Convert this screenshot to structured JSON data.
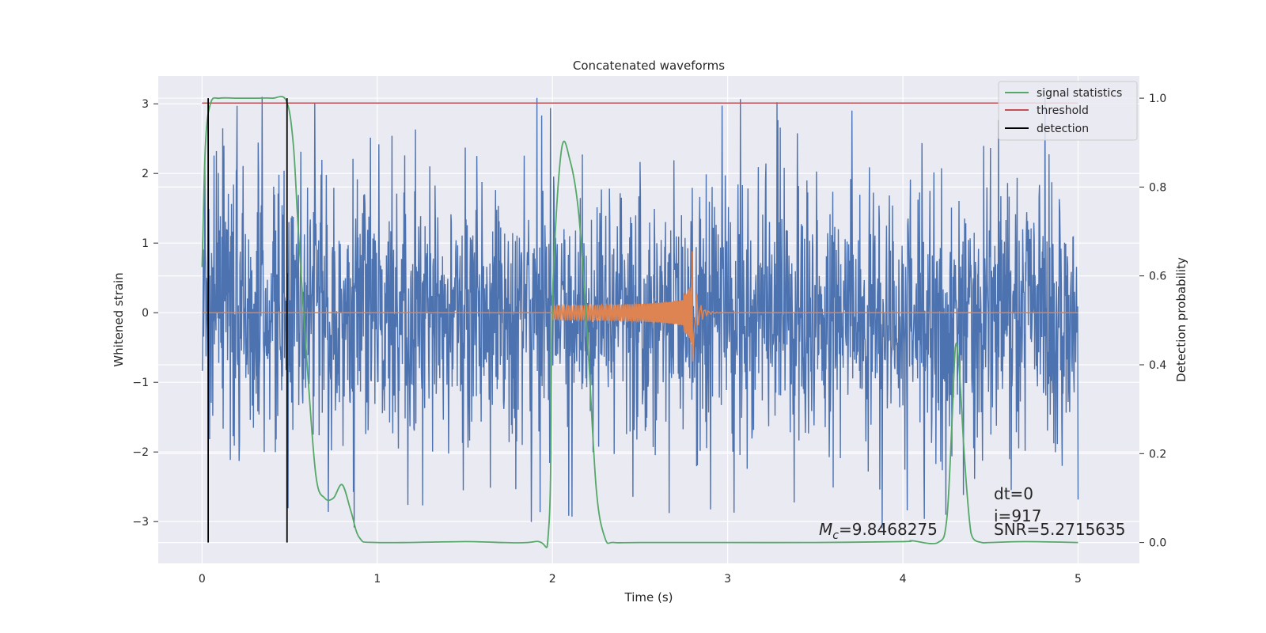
{
  "chart_data": {
    "type": "line",
    "title": "Concatenated waveforms",
    "xlabel": "Time (s)",
    "ylabel": "Whitened strain",
    "y2label": "Detection probability",
    "xlim": [
      -0.25,
      5.35
    ],
    "ylim": [
      -3.6,
      3.4
    ],
    "y2lim": [
      -0.047,
      1.05
    ],
    "xticks": [
      0,
      1,
      2,
      3,
      4,
      5
    ],
    "yticks": [
      -3,
      -2,
      -1,
      0,
      1,
      2,
      3
    ],
    "y2ticks": [
      0.0,
      0.2,
      0.4,
      0.6,
      0.8,
      1.0
    ],
    "ytick_labels": [
      "−3",
      "−2",
      "−1",
      "0",
      "1",
      "2",
      "3"
    ],
    "y2tick_labels": [
      "0.0",
      "0.2",
      "0.4",
      "0.6",
      "0.8",
      "1.0"
    ],
    "grid": true,
    "legend_position": "top-right",
    "colors": {
      "background": "#eaeaf2",
      "grid": "#ffffff",
      "noise": "#4c72b0",
      "signal": "#dd8452",
      "statistics": "#55a868",
      "threshold": "#c44e52",
      "detection": "#000000"
    },
    "series": [
      {
        "name": "signal statistics",
        "axis": "right",
        "x": [
          0.0,
          0.02,
          0.05,
          0.1,
          0.2,
          0.3,
          0.4,
          0.48,
          0.52,
          0.55,
          0.6,
          0.65,
          0.7,
          0.75,
          0.8,
          0.85,
          0.9,
          1.0,
          1.5,
          1.9,
          1.98,
          2.0,
          2.05,
          2.1,
          2.15,
          2.2,
          2.25,
          2.3,
          2.35,
          2.5,
          3.0,
          3.5,
          4.0,
          4.05,
          4.2,
          4.25,
          4.28,
          4.3,
          4.32,
          4.35,
          4.38,
          4.4,
          4.45,
          4.5,
          4.7,
          5.0
        ],
        "y": [
          0.62,
          0.9,
          0.99,
          1.0,
          1.0,
          1.0,
          1.0,
          0.995,
          0.9,
          0.7,
          0.4,
          0.15,
          0.1,
          0.1,
          0.13,
          0.07,
          0.01,
          0.0,
          0.002,
          0.002,
          0.04,
          0.55,
          0.88,
          0.86,
          0.74,
          0.46,
          0.12,
          0.01,
          0.0,
          0.0,
          0.0,
          0.0,
          0.002,
          0.004,
          0.0,
          0.05,
          0.27,
          0.44,
          0.4,
          0.2,
          0.05,
          0.01,
          0.0,
          0.0,
          0.002,
          0.0
        ]
      },
      {
        "name": "threshold",
        "axis": "right",
        "x": [
          0,
          5
        ],
        "y": [
          0.989,
          0.989
        ]
      },
      {
        "name": "detection",
        "axis": "right",
        "segments": [
          {
            "x": 0.035,
            "y": [
              0.0,
              1.0
            ]
          },
          {
            "x": 0.485,
            "y": [
              0.0,
              1.0
            ]
          }
        ]
      },
      {
        "name": "",
        "axis": "left",
        "role": "whitened noise",
        "x_range": [
          0,
          5
        ],
        "amplitude_typical": 1.5,
        "amplitude_max": 3.1
      },
      {
        "name": "",
        "axis": "left",
        "role": "injected chirp",
        "x_range": [
          2.0,
          2.8
        ],
        "peak_time": 2.8,
        "peak_amplitude": 0.88,
        "min_amplitude": -0.7
      }
    ],
    "annotations": {
      "mc_symbol": "M",
      "mc_sub": "c",
      "mc_value": "=9.8468275",
      "dt": "dt=0",
      "i": "i=917",
      "snr": "SNR=5.2715635"
    }
  }
}
